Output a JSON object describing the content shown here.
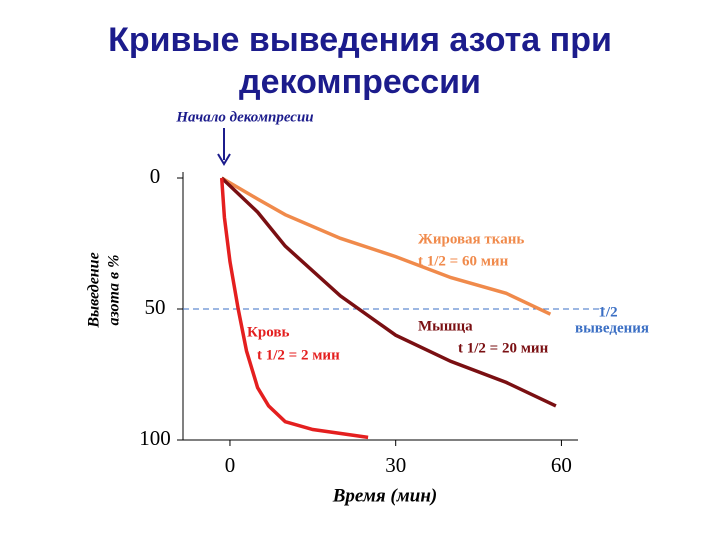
{
  "chart_data": {
    "type": "line",
    "title": [
      "Кривые  выведения  азота  при",
      "декомпрессии"
    ],
    "start_label": "Начало декомпресии",
    "xlabel": "Время (мин)",
    "ylabel": [
      "Выведение",
      "азота в %"
    ],
    "xlim": [
      -8.5,
      63
    ],
    "xticks": [
      0,
      30,
      60
    ],
    "ylim": [
      0,
      100
    ],
    "yticks": [
      0,
      50,
      100
    ],
    "y_inverted": true,
    "half_line": {
      "value": 50,
      "label": [
        "1/2",
        "выведения"
      ],
      "color": "#3b6fc4"
    },
    "series": [
      {
        "name": "Жировая ткань",
        "annotation": "t 1/2 = 60  мин",
        "color": "#f08a4b",
        "x": [
          -1.5,
          5,
          10,
          20,
          30,
          40,
          50,
          58
        ],
        "values": [
          0,
          8,
          14,
          23,
          30,
          38,
          44,
          52
        ]
      },
      {
        "name": "Мышца",
        "annotation": "t 1/2 = 20  мин",
        "color": "#7a0f12",
        "x": [
          -1.5,
          5,
          10,
          20,
          30,
          40,
          50,
          59
        ],
        "values": [
          0,
          13,
          26,
          45,
          60,
          70,
          78,
          87
        ]
      },
      {
        "name": "Кровь",
        "annotation": "t 1/2 = 2 мин",
        "color": "#e41f1f",
        "x": [
          -1.5,
          -1,
          0,
          1.5,
          3,
          5,
          7,
          10,
          15,
          25
        ],
        "values": [
          0,
          15,
          32,
          50,
          66,
          80,
          87,
          93,
          96,
          99
        ]
      }
    ]
  }
}
